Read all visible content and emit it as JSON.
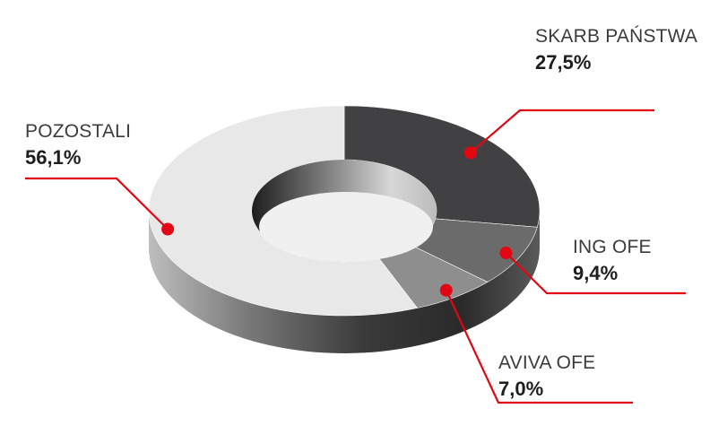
{
  "chart_data": {
    "type": "pie",
    "variant": "donut-3d",
    "categories": [
      "SKARB PAŃSTWA",
      "ING OFE",
      "AVIVA OFE",
      "POZOSTALI"
    ],
    "values": [
      27.5,
      9.4,
      7.0,
      56.1
    ],
    "value_labels": [
      "27,5%",
      "9,4%",
      "7,0%",
      "56,1%"
    ],
    "unit": "%",
    "title": "",
    "legend": "callouts",
    "colors": {
      "slices": [
        "#414143",
        "#6b6b6b",
        "#8e8e8e",
        "#e8e8e8"
      ],
      "accent": "#e30613"
    }
  }
}
